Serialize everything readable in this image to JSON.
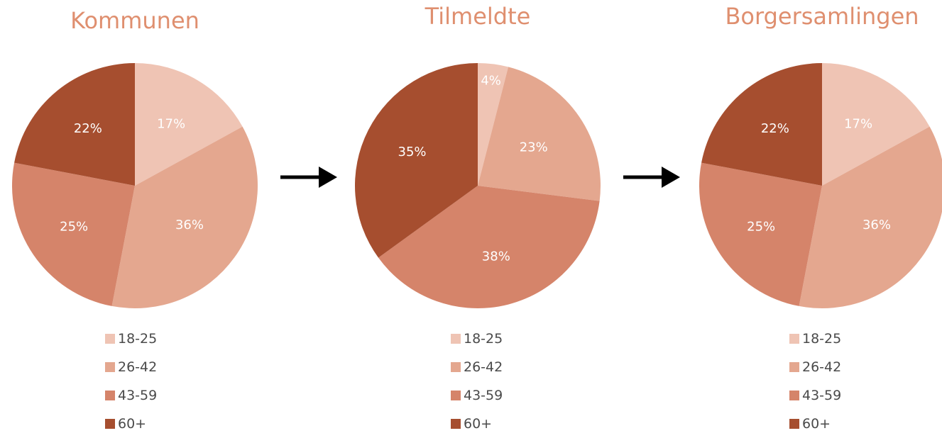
{
  "chart_data": [
    {
      "type": "pie",
      "title": "Kommunen",
      "categories": [
        "18-25",
        "26-42",
        "43-59",
        "60+"
      ],
      "values": [
        17,
        36,
        25,
        22
      ],
      "labels": [
        "17%",
        "36%",
        "25%",
        "22%"
      ],
      "legend_position": "bottom"
    },
    {
      "type": "pie",
      "title": "Tilmeldte",
      "categories": [
        "18-25",
        "26-42",
        "43-59",
        "60+"
      ],
      "values": [
        4,
        23,
        38,
        35
      ],
      "labels": [
        "4%",
        "23%",
        "38%",
        "35%"
      ],
      "legend_position": "bottom"
    },
    {
      "type": "pie",
      "title": "Borgersamlingen",
      "categories": [
        "18-25",
        "26-42",
        "43-59",
        "60+"
      ],
      "values": [
        17,
        36,
        25,
        22
      ],
      "labels": [
        "17%",
        "36%",
        "25%",
        "22%"
      ],
      "legend_position": "bottom"
    }
  ],
  "colors": [
    "#efc4b4",
    "#e4a78f",
    "#d5846a",
    "#a64e2f"
  ],
  "arrow_icon": "right-arrow-icon"
}
